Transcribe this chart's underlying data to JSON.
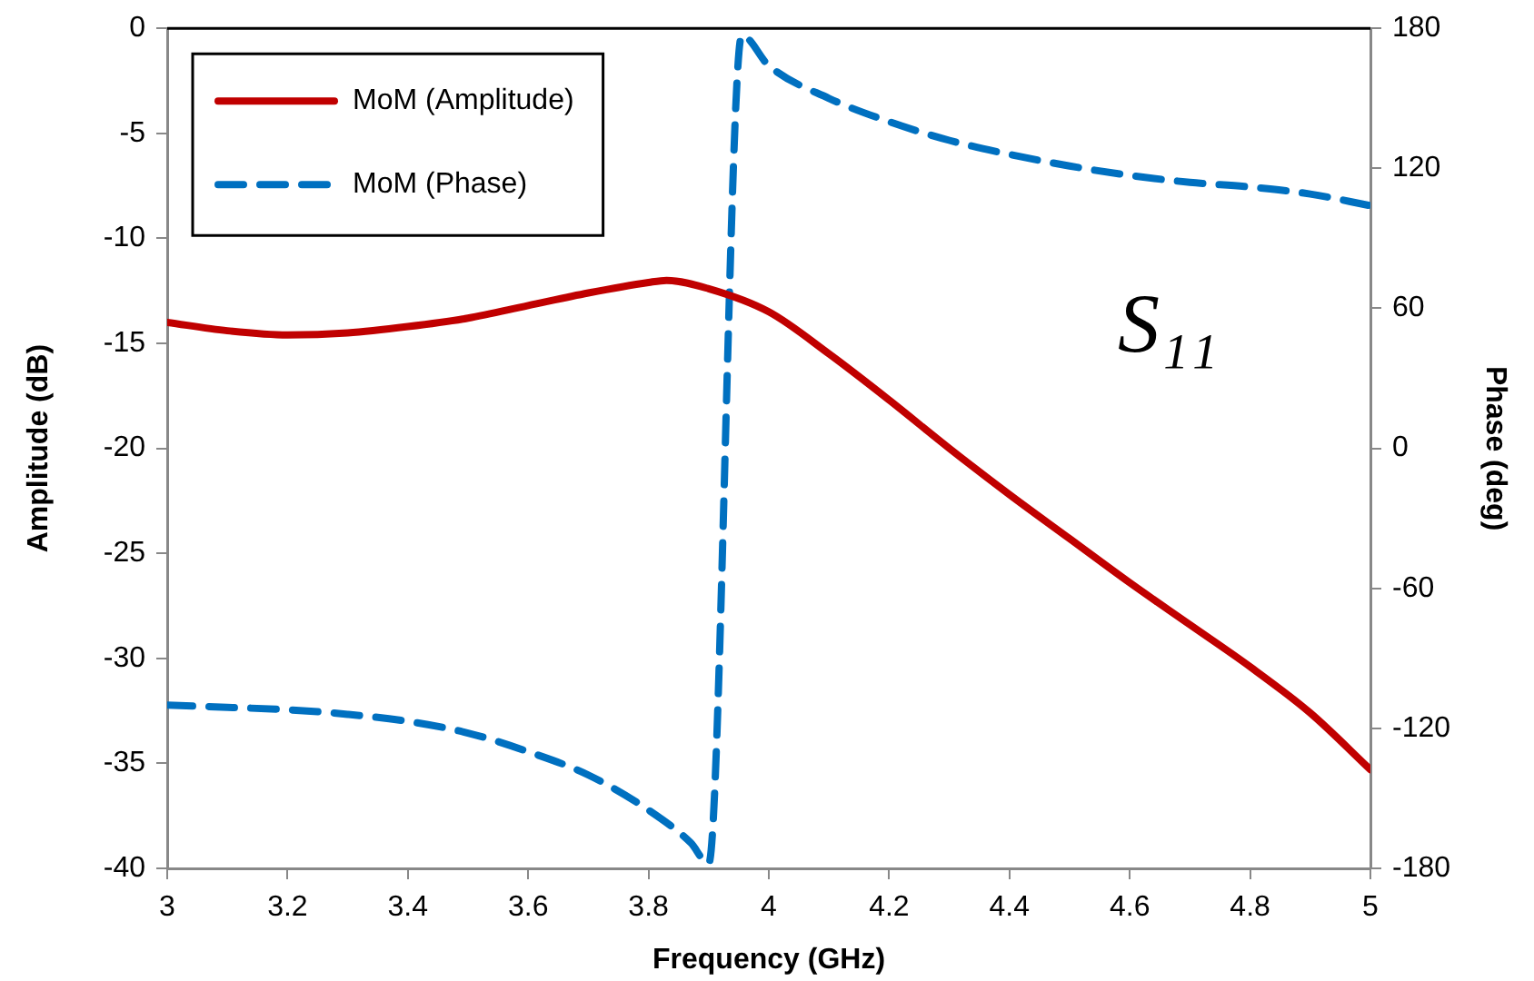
{
  "chart_data": {
    "type": "line",
    "xlabel": "Frequency (GHz)",
    "ylabel": "Amplitude (dB)",
    "y2label": "Phase (deg)",
    "xlim": [
      3,
      5
    ],
    "xticks": [
      3,
      3.2,
      3.4,
      3.6,
      3.8,
      4,
      4.2,
      4.4,
      4.6,
      4.8,
      5
    ],
    "ylim": [
      -40,
      0
    ],
    "yticks": [
      -40,
      -35,
      -30,
      -25,
      -20,
      -15,
      -10,
      -5,
      0
    ],
    "y2lim": [
      -180,
      180
    ],
    "y2ticks": [
      -180,
      -120,
      -60,
      0,
      60,
      120,
      180
    ],
    "grid": false,
    "legend": "top left",
    "marker": "none",
    "annotations": [
      "S₁₁"
    ],
    "series": [
      {
        "name": "MoM (Amplitude)",
        "color": "#c00000",
        "line_style": "solid",
        "x": [
          3,
          3.1,
          3.2,
          3.3,
          3.4,
          3.5,
          3.6,
          3.7,
          3.8,
          3.83,
          3.9,
          4,
          4.1,
          4.2,
          4.3,
          4.4,
          4.5,
          4.6,
          4.7,
          4.8,
          4.9,
          5
        ],
        "values": [
          -14,
          -14.4,
          -14.6,
          -14.5,
          -14.2,
          -13.8,
          -13.2,
          -12.6,
          -12.1,
          -12,
          -12.4,
          -13.5,
          -15.5,
          -17.7,
          -20,
          -22.2,
          -24.3,
          -26.4,
          -28.4,
          -30.4,
          -32.6,
          -35.3
        ]
      },
      {
        "name": "MoM (Phase)",
        "color": "#0070c0",
        "line_style": "dashed",
        "axis": "y2",
        "x": [
          3,
          3.1,
          3.2,
          3.3,
          3.4,
          3.5,
          3.6,
          3.7,
          3.8,
          3.87,
          3.9,
          3.955,
          4,
          4.1,
          4.2,
          4.3,
          4.4,
          4.5,
          4.6,
          4.7,
          4.8,
          4.9,
          5
        ],
        "values": [
          -110,
          -111,
          -112,
          -114,
          -117,
          -122,
          -130,
          -140,
          -155,
          -169,
          -178,
          177,
          164,
          150,
          140,
          132,
          126,
          121,
          117,
          114,
          112,
          109,
          104
        ]
      }
    ]
  }
}
